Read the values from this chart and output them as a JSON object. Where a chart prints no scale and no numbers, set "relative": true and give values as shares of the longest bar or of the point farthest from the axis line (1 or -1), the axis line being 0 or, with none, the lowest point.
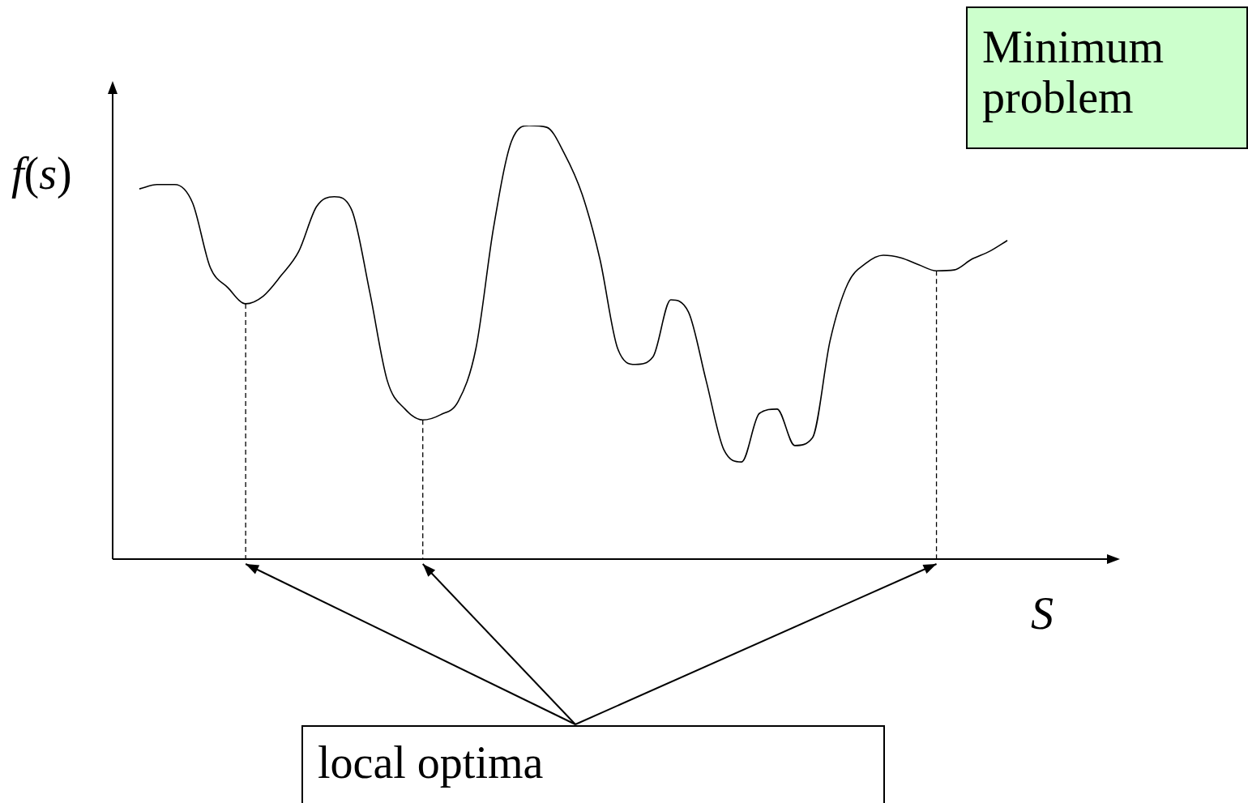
{
  "chart_data": {
    "type": "line",
    "relative": true,
    "ylabel": "f(s)",
    "xlabel": "S",
    "annotations": [
      "Minimum problem",
      "local optima"
    ],
    "categories": [
      null,
      null,
      null,
      null,
      null,
      null,
      null,
      null,
      null,
      null,
      null,
      null,
      null,
      null,
      null,
      null,
      null,
      null,
      null,
      null,
      null,
      null,
      null,
      null,
      null,
      null,
      null,
      null,
      null,
      null,
      null,
      null,
      null,
      null,
      null,
      null,
      null,
      null,
      null,
      null,
      null,
      null,
      null,
      null,
      null,
      null,
      null,
      null,
      null,
      null
    ],
    "values": [
      0.854,
      0.864,
      0.864,
      0.822,
      0.673,
      0.626,
      0.589,
      0.607,
      0.654,
      0.71,
      0.813,
      0.836,
      0.804,
      0.617,
      0.411,
      0.346,
      0.321,
      0.333,
      0.364,
      0.486,
      0.766,
      0.963,
      1,
      0.996,
      0.935,
      0.841,
      0.692,
      0.486,
      0.449,
      0.467,
      0.598,
      0.57,
      0.411,
      0.252,
      0.224,
      0.336,
      0.346,
      0.262,
      0.28,
      0.505,
      0.636,
      0.682,
      0.701,
      0.695,
      0.679,
      0.665,
      0.667,
      0.692,
      0.71,
      0.735
    ],
    "color": "#000000",
    "marker": "none",
    "line_style": "solid",
    "legend": false
  }
}
